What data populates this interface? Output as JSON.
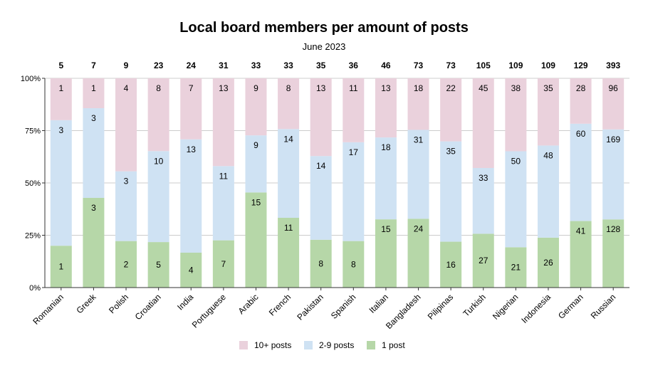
{
  "chart_data": {
    "type": "bar",
    "stacked": "percent",
    "title": "Local board members per amount of posts",
    "subtitle": "June 2023",
    "categories": [
      "Romanian",
      "Greek",
      "Polish",
      "Croatian",
      "India",
      "Portuguese",
      "Arabic",
      "French",
      "Pakistan",
      "Spanish",
      "Italian",
      "Bangladesh",
      "Pilipinas",
      "Turkish",
      "Nigerian",
      "Indonesia",
      "German",
      "Russian"
    ],
    "totals": [
      5,
      7,
      9,
      23,
      24,
      31,
      33,
      33,
      35,
      36,
      46,
      73,
      73,
      105,
      109,
      109,
      129,
      393
    ],
    "series": [
      {
        "name": "1 post",
        "color": "#b6d7a8",
        "values": [
          1,
          3,
          2,
          5,
          4,
          7,
          15,
          11,
          8,
          8,
          15,
          24,
          16,
          27,
          21,
          26,
          41,
          128
        ]
      },
      {
        "name": "2-9 posts",
        "color": "#cfe2f3",
        "values": [
          3,
          3,
          3,
          10,
          13,
          11,
          9,
          14,
          14,
          17,
          18,
          31,
          35,
          33,
          50,
          48,
          60,
          169
        ]
      },
      {
        "name": "10+ posts",
        "color": "#ead1dc",
        "values": [
          1,
          1,
          4,
          8,
          7,
          13,
          9,
          8,
          13,
          11,
          13,
          18,
          22,
          45,
          38,
          35,
          28,
          96
        ]
      }
    ],
    "y_ticks": [
      "0%",
      "25%",
      "50%",
      "75%",
      "100%"
    ],
    "ylim": [
      0,
      100
    ],
    "grid": true,
    "legend": {
      "position": "bottom",
      "order": [
        "10+ posts",
        "2-9 posts",
        "1 post"
      ]
    }
  }
}
